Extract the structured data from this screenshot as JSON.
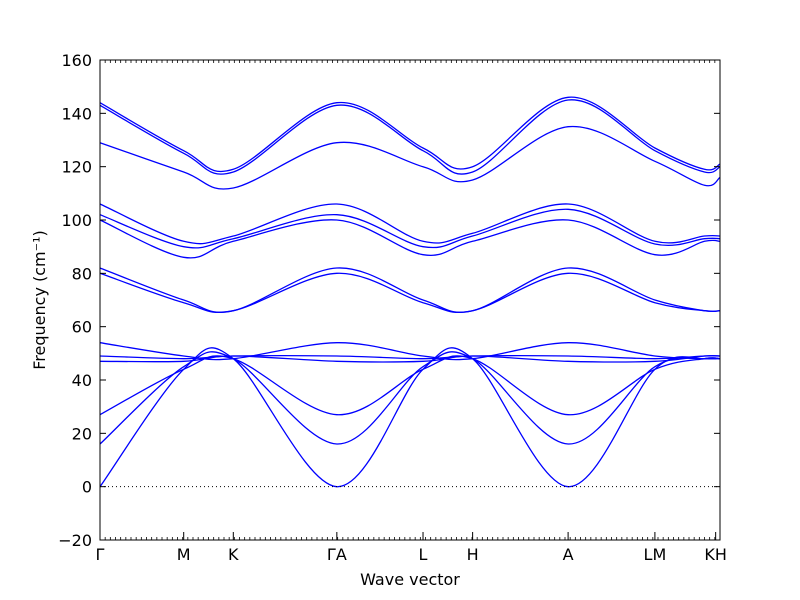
{
  "chart_data": {
    "type": "line",
    "title": "",
    "xlabel": "Wave vector",
    "ylabel": "Frequency (cm⁻¹)",
    "ylim": [
      -20,
      160
    ],
    "yticks": [
      -20,
      0,
      20,
      40,
      60,
      80,
      100,
      120,
      140,
      160
    ],
    "zero_line": true,
    "grid": false,
    "line_color": "#0000ff",
    "high_symmetry_points": [
      {
        "label": "Γ",
        "position": 0.0
      },
      {
        "label": "M",
        "position": 0.135
      },
      {
        "label": "K",
        "position": 0.215
      },
      {
        "label": "ΓA",
        "position": 0.382
      },
      {
        "label": "L",
        "position": 0.521
      },
      {
        "label": "H",
        "position": 0.601
      },
      {
        "label": "A",
        "position": 0.755
      },
      {
        "label": "LM",
        "position": 0.895
      },
      {
        "label": "KH",
        "position": 0.993
      }
    ],
    "x": [
      0.0,
      0.135,
      0.215,
      0.382,
      0.521,
      0.601,
      0.755,
      0.895,
      0.975,
      1.0
    ],
    "series": [
      {
        "values": [
          144,
          126,
          119,
          144,
          127,
          120,
          146,
          127,
          119,
          121
        ]
      },
      {
        "values": [
          143,
          125,
          118,
          143,
          126,
          118,
          145,
          126,
          118,
          120
        ]
      },
      {
        "values": [
          129,
          118,
          112,
          129,
          120,
          115,
          135,
          122,
          113,
          116
        ]
      },
      {
        "values": [
          106,
          92,
          94,
          106,
          92,
          95,
          106,
          92,
          94,
          94
        ]
      },
      {
        "values": [
          102,
          90,
          93,
          102,
          90,
          94,
          104,
          91,
          93,
          93
        ]
      },
      {
        "values": [
          100,
          86,
          92,
          100,
          87,
          92,
          100,
          87,
          92,
          92
        ]
      },
      {
        "values": [
          82,
          70,
          66,
          82,
          70,
          66,
          82,
          70,
          66,
          66
        ]
      },
      {
        "values": [
          80,
          69,
          66,
          80,
          69,
          66,
          80,
          69,
          66,
          66
        ]
      },
      {
        "values": [
          54,
          49,
          48,
          54,
          49,
          48,
          54,
          49,
          48,
          48
        ]
      },
      {
        "values": [
          49,
          48,
          49,
          49,
          48,
          49,
          49,
          48,
          49,
          49
        ]
      },
      {
        "values": [
          47,
          47,
          49,
          47,
          47,
          49,
          47,
          47,
          49,
          49
        ]
      },
      {
        "values": [
          27,
          44,
          48,
          27,
          44,
          48,
          27,
          44,
          48,
          48
        ]
      },
      {
        "values": [
          16,
          45,
          48,
          16,
          45,
          48,
          16,
          45,
          48,
          48
        ]
      },
      {
        "values": [
          0,
          44,
          48,
          0,
          44,
          48,
          0,
          44,
          48,
          48
        ]
      }
    ]
  }
}
